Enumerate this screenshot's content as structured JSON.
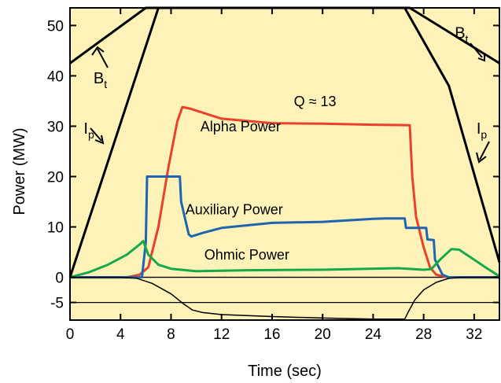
{
  "chart_data": {
    "type": "line",
    "xlabel": "Time (sec)",
    "ylabel": "Power (MW)",
    "xlim": [
      0,
      34
    ],
    "ylim": [
      -8.5,
      53.5
    ],
    "x_ticks": [
      0,
      4,
      8,
      12,
      16,
      20,
      24,
      28,
      32
    ],
    "x_tick_labels": [
      "0",
      "4",
      "8",
      "12",
      "16",
      "20",
      "24",
      "28",
      "32"
    ],
    "y_ticks": [
      50,
      40,
      30,
      20,
      10,
      0,
      -5
    ],
    "y_tick_labels": [
      "50",
      "40",
      "30",
      "20",
      "10",
      "0",
      "-5"
    ],
    "background_color": "#fdf3b8",
    "grid": false,
    "series": [
      {
        "name": "Alpha Power",
        "color": "#e8412c",
        "points": [
          [
            0,
            0
          ],
          [
            4.5,
            0
          ],
          [
            5.5,
            0.5
          ],
          [
            6.2,
            2
          ],
          [
            7,
            10
          ],
          [
            7.8,
            22
          ],
          [
            8.5,
            31
          ],
          [
            8.9,
            33.8
          ],
          [
            9.5,
            33.5
          ],
          [
            12,
            31.5
          ],
          [
            16,
            30.6
          ],
          [
            20,
            30.5
          ],
          [
            24,
            30.3
          ],
          [
            26.9,
            30.2
          ],
          [
            27.1,
            20
          ],
          [
            27.4,
            12
          ],
          [
            28,
            6
          ],
          [
            28.5,
            2
          ],
          [
            29,
            0.5
          ],
          [
            30,
            0
          ],
          [
            34,
            0
          ]
        ]
      },
      {
        "name": "Auxiliary Power",
        "color": "#1f64b0",
        "points": [
          [
            0,
            0
          ],
          [
            5.7,
            0
          ],
          [
            6,
            7
          ],
          [
            6.1,
            20
          ],
          [
            8.7,
            20
          ],
          [
            8.8,
            15
          ],
          [
            9.4,
            8.5
          ],
          [
            9.6,
            8.1
          ],
          [
            10.5,
            8.8
          ],
          [
            12,
            9.8
          ],
          [
            16,
            10.8
          ],
          [
            20,
            11
          ],
          [
            24,
            11.6
          ],
          [
            25,
            11.7
          ],
          [
            26.5,
            11.7
          ],
          [
            26.6,
            9.8
          ],
          [
            28.2,
            9.8
          ],
          [
            28.3,
            7.5
          ],
          [
            28.8,
            7.4
          ],
          [
            28.9,
            3.5
          ],
          [
            29.5,
            0.5
          ],
          [
            30,
            0
          ],
          [
            34,
            0
          ]
        ]
      },
      {
        "name": "Ohmic Power",
        "color": "#17a84a",
        "points": [
          [
            0,
            0
          ],
          [
            1.5,
            1
          ],
          [
            3,
            2.5
          ],
          [
            4.5,
            4.5
          ],
          [
            5.5,
            6.5
          ],
          [
            5.8,
            7.2
          ],
          [
            6.2,
            4.5
          ],
          [
            7,
            2.5
          ],
          [
            8,
            1.7
          ],
          [
            10,
            1.2
          ],
          [
            14,
            1.4
          ],
          [
            20,
            1.5
          ],
          [
            26,
            1.8
          ],
          [
            28,
            1.5
          ],
          [
            28.6,
            1.6
          ],
          [
            29.3,
            3.5
          ],
          [
            30.2,
            5.6
          ],
          [
            30.8,
            5.5
          ],
          [
            32,
            3.5
          ],
          [
            33,
            1.8
          ],
          [
            34,
            0.2
          ]
        ]
      },
      {
        "name": "",
        "color": "#000000",
        "points": [
          [
            0,
            0
          ],
          [
            4,
            0
          ],
          [
            5.3,
            -0.2
          ],
          [
            6.5,
            -1.2
          ],
          [
            8,
            -3.3
          ],
          [
            9,
            -5.3
          ],
          [
            9.7,
            -6.5
          ],
          [
            10.5,
            -7
          ],
          [
            12,
            -7.4
          ],
          [
            16,
            -7.8
          ],
          [
            20,
            -8.1
          ],
          [
            24,
            -8.3
          ],
          [
            26.5,
            -8.3
          ],
          [
            26.8,
            -6.8
          ],
          [
            27.3,
            -4.5
          ],
          [
            28,
            -2.5
          ],
          [
            29,
            -1
          ],
          [
            30,
            -0.2
          ],
          [
            31,
            0
          ],
          [
            34,
            0
          ]
        ]
      },
      {
        "name": "Bt",
        "color": "#000000",
        "points": [
          [
            0,
            42.5
          ],
          [
            6,
            53.5
          ],
          [
            26.9,
            53.5
          ],
          [
            34,
            42.5
          ]
        ]
      },
      {
        "name": "Ip",
        "color": "#000000",
        "points": [
          [
            0,
            0
          ],
          [
            7,
            53.5
          ],
          [
            26.5,
            53.5
          ],
          [
            30,
            38
          ],
          [
            34,
            3
          ]
        ]
      }
    ],
    "reference_lines": [
      0,
      -5
    ],
    "annotations": [
      {
        "text": "Q ≈ 13",
        "x": 19.4,
        "y": 34
      },
      {
        "text": "Alpha Power",
        "x": 13.5,
        "y": 29
      },
      {
        "text": "Auxiliary Power",
        "x": 13,
        "y": 12.5
      },
      {
        "text": "Ohmic Power",
        "x": 14,
        "y": 3.5
      },
      {
        "text": "B",
        "sub": "t",
        "x": 2.4,
        "y": 38.5
      },
      {
        "text": "I",
        "sub": "p",
        "x": 1.5,
        "y": 28.5
      },
      {
        "text": "B",
        "sub": "t",
        "x": 31,
        "y": 47.5
      },
      {
        "text": "I",
        "sub": "p",
        "x": 32.6,
        "y": 28.5
      }
    ]
  }
}
